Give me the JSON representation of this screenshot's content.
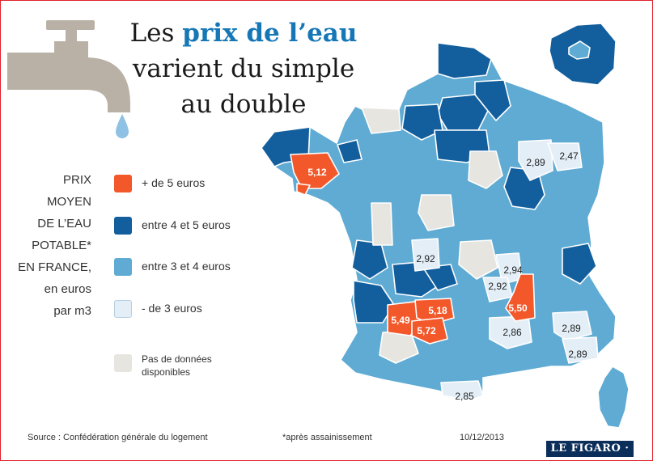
{
  "title": {
    "line1_prefix": "Les ",
    "line1_highlight": "prix de l’eau",
    "line2": "varient du simple",
    "line3": "au double"
  },
  "legend": {
    "title_lines": [
      "PRIX",
      "MOYEN",
      "DE L’EAU",
      "POTABLE*",
      "EN FRANCE,",
      "en euros",
      "par m3"
    ],
    "categories": [
      {
        "label": "+  de 5 euros",
        "color": "#f2582a"
      },
      {
        "label": "entre 4 et 5 euros",
        "color": "#135f9e"
      },
      {
        "label": "entre 3 et 4 euros",
        "color": "#5fabd3"
      },
      {
        "label": "- de 3 euros",
        "color": "#e3eef7"
      }
    ],
    "no_data": {
      "label_line1": "Pas de données",
      "label_line2": "disponibles",
      "color": "#e6e5e0"
    }
  },
  "map_labels": [
    "5,12",
    "2,47",
    "2,89",
    "2,92",
    "2,94",
    "2,92",
    "5,50",
    "5,49",
    "5,18",
    "5,72",
    "2,86",
    "2,89",
    "2,89",
    "2,85"
  ],
  "footer": {
    "source": "Source : Confédération générale du logement",
    "note": "*après assainissement",
    "date": "10/12/2013",
    "logo": "LE FIGARO · fr"
  }
}
